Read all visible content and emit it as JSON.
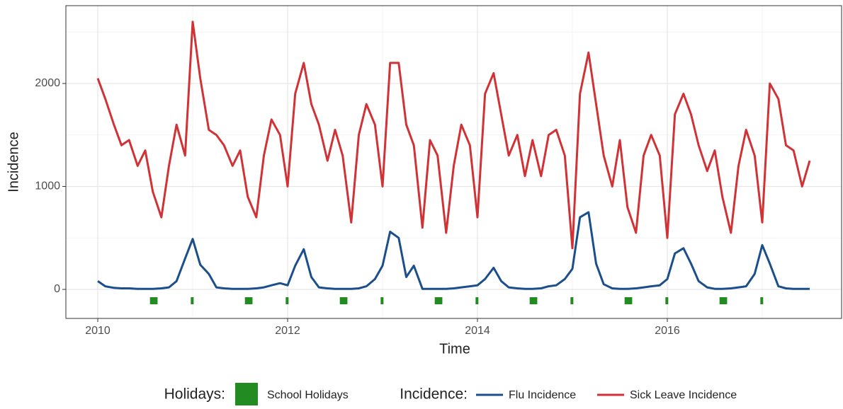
{
  "chart_data": {
    "type": "line",
    "xlabel": "Time",
    "ylabel": "Incidence",
    "x": [
      2010.0,
      2010.08,
      2010.17,
      2010.25,
      2010.33,
      2010.42,
      2010.5,
      2010.58,
      2010.67,
      2010.75,
      2010.83,
      2010.92,
      2011.0,
      2011.08,
      2011.17,
      2011.25,
      2011.33,
      2011.42,
      2011.5,
      2011.58,
      2011.67,
      2011.75,
      2011.83,
      2011.92,
      2012.0,
      2012.08,
      2012.17,
      2012.25,
      2012.33,
      2012.42,
      2012.5,
      2012.58,
      2012.67,
      2012.75,
      2012.83,
      2012.92,
      2013.0,
      2013.08,
      2013.17,
      2013.25,
      2013.33,
      2013.42,
      2013.5,
      2013.58,
      2013.67,
      2013.75,
      2013.83,
      2013.92,
      2014.0,
      2014.08,
      2014.17,
      2014.25,
      2014.33,
      2014.42,
      2014.5,
      2014.58,
      2014.67,
      2014.75,
      2014.83,
      2014.92,
      2015.0,
      2015.08,
      2015.17,
      2015.25,
      2015.33,
      2015.42,
      2015.5,
      2015.58,
      2015.67,
      2015.75,
      2015.83,
      2015.92,
      2016.0,
      2016.08,
      2016.17,
      2016.25,
      2016.33,
      2016.42,
      2016.5,
      2016.58,
      2016.67,
      2016.75,
      2016.83,
      2016.92,
      2017.0,
      2017.08,
      2017.17,
      2017.25,
      2017.33,
      2017.42,
      2017.5
    ],
    "series": [
      {
        "name": "Flu Incidence",
        "color": "#1b4f8c",
        "values": [
          80,
          30,
          15,
          10,
          10,
          5,
          5,
          5,
          10,
          20,
          80,
          300,
          490,
          240,
          150,
          20,
          10,
          5,
          5,
          5,
          10,
          20,
          40,
          60,
          40,
          230,
          390,
          120,
          20,
          10,
          5,
          5,
          5,
          10,
          30,
          100,
          230,
          560,
          500,
          120,
          230,
          5,
          5,
          5,
          5,
          10,
          20,
          30,
          40,
          100,
          210,
          80,
          20,
          10,
          5,
          5,
          10,
          30,
          40,
          100,
          200,
          700,
          750,
          250,
          50,
          10,
          5,
          5,
          10,
          20,
          30,
          40,
          100,
          350,
          400,
          250,
          80,
          20,
          5,
          5,
          10,
          20,
          30,
          150,
          430,
          250,
          30,
          10,
          5,
          5,
          5
        ]
      },
      {
        "name": "Sick Leave Incidence",
        "color": "#d03236",
        "values": [
          2050,
          1850,
          1600,
          1400,
          1450,
          1200,
          1350,
          950,
          700,
          1200,
          1600,
          1300,
          2600,
          2050,
          1550,
          1500,
          1400,
          1200,
          1350,
          900,
          700,
          1300,
          1650,
          1500,
          1000,
          1900,
          2200,
          1800,
          1600,
          1250,
          1550,
          1300,
          650,
          1500,
          1800,
          1600,
          1000,
          2200,
          2200,
          1600,
          1400,
          600,
          1450,
          1300,
          550,
          1200,
          1600,
          1400,
          700,
          1900,
          2100,
          1700,
          1300,
          1500,
          1100,
          1450,
          1100,
          1500,
          1550,
          1300,
          400,
          1900,
          2300,
          1800,
          1300,
          1000,
          1450,
          800,
          550,
          1300,
          1500,
          1300,
          500,
          1700,
          1900,
          1700,
          1400,
          1150,
          1350,
          900,
          550,
          1200,
          1550,
          1300,
          650,
          2000,
          1850,
          1400,
          1350,
          1000,
          1250
        ]
      }
    ],
    "holidays": {
      "name": "School Holidays",
      "color": "#228b22",
      "periods": [
        [
          2010.55,
          2010.63
        ],
        [
          2010.98,
          2011.01
        ],
        [
          2011.55,
          2011.63
        ],
        [
          2011.98,
          2012.01
        ],
        [
          2012.55,
          2012.63
        ],
        [
          2012.98,
          2013.01
        ],
        [
          2013.55,
          2013.63
        ],
        [
          2013.98,
          2014.01
        ],
        [
          2014.55,
          2014.63
        ],
        [
          2014.98,
          2015.01
        ],
        [
          2015.55,
          2015.63
        ],
        [
          2015.98,
          2016.01
        ],
        [
          2016.55,
          2016.63
        ],
        [
          2016.98,
          2017.01
        ]
      ]
    },
    "legend_titles": {
      "holidays": "Holidays:",
      "incidence": "Incidence:"
    },
    "xlim": [
      2009.664,
      2017.836
    ],
    "ylim": [
      -282,
      2756
    ],
    "xticks": [
      2010,
      2012,
      2014,
      2016
    ],
    "yticks": [
      0,
      1000,
      2000
    ],
    "minor_xticks": [
      2011,
      2013,
      2015,
      2017
    ],
    "minor_yticks": [
      500,
      1500,
      2500
    ],
    "grid": true
  }
}
